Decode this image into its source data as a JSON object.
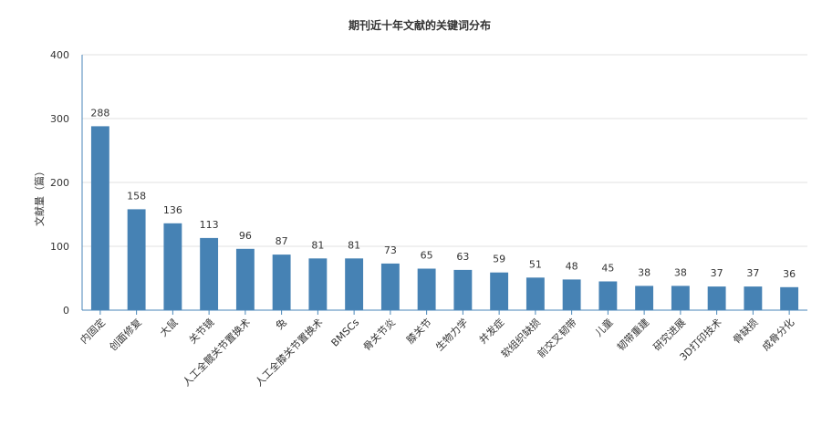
{
  "chart_data": {
    "type": "bar",
    "title": "期刊近十年文献的关键词分布",
    "xlabel": "",
    "ylabel": "文献量（篇）",
    "ylim": [
      0,
      400
    ],
    "yticks": [
      0,
      100,
      200,
      300,
      400
    ],
    "grid": true,
    "bar_color": "#4682b4",
    "categories": [
      "内固定",
      "创面修复",
      "大鼠",
      "关节镜",
      "人工全髋关节置换术",
      "兔",
      "人工全膝关节置换术",
      "BMSCs",
      "骨关节炎",
      "膝关节",
      "生物力学",
      "并发症",
      "软组织缺损",
      "前交叉韧带",
      "儿童",
      "韧带重建",
      "研究进展",
      "3D打印技术",
      "骨缺损",
      "成骨分化"
    ],
    "values": [
      288,
      158,
      136,
      113,
      96,
      87,
      81,
      81,
      73,
      65,
      63,
      59,
      51,
      48,
      45,
      38,
      38,
      37,
      37,
      36
    ]
  }
}
